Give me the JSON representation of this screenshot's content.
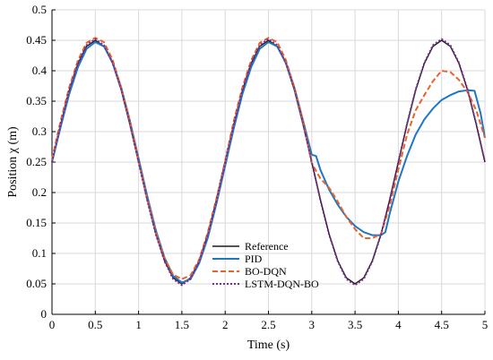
{
  "chart_data": {
    "type": "line",
    "title": "",
    "xlabel": "Time (s)",
    "ylabel": "Position χ (m)",
    "xlim": [
      0,
      5
    ],
    "ylim": [
      0,
      0.5
    ],
    "xticks": [
      0,
      0.5,
      1,
      1.5,
      2,
      2.5,
      3,
      3.5,
      4,
      4.5,
      5
    ],
    "xtick_labels": [
      "0",
      "0.5",
      "1",
      "1.5",
      "2",
      "2.5",
      "3",
      "3.5",
      "4",
      "4.5",
      "5"
    ],
    "yticks": [
      0,
      0.05,
      0.1,
      0.15,
      0.2,
      0.25,
      0.3,
      0.35,
      0.4,
      0.45,
      0.5
    ],
    "ytick_labels": [
      "0",
      "0.05",
      "0.1",
      "0.15",
      "0.2",
      "0.25",
      "0.3",
      "0.35",
      "0.4",
      "0.45",
      "0.5"
    ],
    "grid": true,
    "legend_position": "bottom-center",
    "series": [
      {
        "name": "Reference",
        "color": "#1a1a1a",
        "style": "solid",
        "x": [
          0,
          0.1,
          0.2,
          0.3,
          0.4,
          0.5,
          0.6,
          0.7,
          0.8,
          0.9,
          1.0,
          1.1,
          1.2,
          1.3,
          1.4,
          1.5,
          1.6,
          1.7,
          1.8,
          1.9,
          2.0,
          2.1,
          2.2,
          2.3,
          2.4,
          2.5,
          2.6,
          2.7,
          2.8,
          2.9,
          3.0,
          3.1,
          3.2,
          3.3,
          3.4,
          3.5,
          3.6,
          3.7,
          3.8,
          3.9,
          4.0,
          4.1,
          4.2,
          4.3,
          4.4,
          4.5,
          4.6,
          4.7,
          4.8,
          4.9,
          5.0
        ],
        "y": [
          0.25,
          0.312,
          0.368,
          0.412,
          0.44,
          0.45,
          0.44,
          0.412,
          0.368,
          0.312,
          0.25,
          0.188,
          0.132,
          0.088,
          0.06,
          0.05,
          0.06,
          0.088,
          0.132,
          0.188,
          0.25,
          0.312,
          0.368,
          0.412,
          0.44,
          0.45,
          0.44,
          0.412,
          0.368,
          0.312,
          0.25,
          0.188,
          0.132,
          0.088,
          0.06,
          0.05,
          0.06,
          0.088,
          0.132,
          0.188,
          0.25,
          0.312,
          0.368,
          0.412,
          0.44,
          0.45,
          0.44,
          0.412,
          0.368,
          0.312,
          0.25
        ]
      },
      {
        "name": "PID",
        "color": "#1f77c4",
        "style": "solid",
        "x": [
          0,
          0.1,
          0.2,
          0.3,
          0.4,
          0.5,
          0.6,
          0.7,
          0.8,
          0.9,
          1.0,
          1.1,
          1.2,
          1.3,
          1.4,
          1.5,
          1.6,
          1.7,
          1.8,
          1.9,
          2.0,
          2.1,
          2.2,
          2.3,
          2.4,
          2.5,
          2.6,
          2.7,
          2.8,
          2.9,
          3.0,
          3.05,
          3.1,
          3.2,
          3.3,
          3.4,
          3.5,
          3.6,
          3.7,
          3.8,
          3.85,
          3.9,
          4.0,
          4.1,
          4.2,
          4.3,
          4.4,
          4.5,
          4.6,
          4.7,
          4.8,
          4.88,
          4.95,
          5.0
        ],
        "y": [
          0.25,
          0.308,
          0.362,
          0.406,
          0.436,
          0.447,
          0.44,
          0.414,
          0.372,
          0.318,
          0.256,
          0.194,
          0.138,
          0.093,
          0.063,
          0.052,
          0.058,
          0.084,
          0.126,
          0.182,
          0.244,
          0.306,
          0.362,
          0.406,
          0.436,
          0.447,
          0.44,
          0.414,
          0.372,
          0.318,
          0.262,
          0.26,
          0.237,
          0.205,
          0.18,
          0.16,
          0.145,
          0.135,
          0.13,
          0.13,
          0.135,
          0.165,
          0.218,
          0.26,
          0.295,
          0.32,
          0.338,
          0.352,
          0.36,
          0.366,
          0.368,
          0.367,
          0.33,
          0.29
        ]
      },
      {
        "name": "BO-DQN",
        "color": "#e8622a",
        "style": "dashed",
        "x": [
          0,
          0.1,
          0.2,
          0.3,
          0.4,
          0.5,
          0.6,
          0.7,
          0.8,
          0.9,
          1.0,
          1.1,
          1.2,
          1.3,
          1.4,
          1.5,
          1.6,
          1.7,
          1.8,
          1.9,
          2.0,
          2.1,
          2.2,
          2.3,
          2.4,
          2.5,
          2.6,
          2.7,
          2.8,
          2.9,
          3.0,
          3.1,
          3.2,
          3.3,
          3.4,
          3.5,
          3.6,
          3.7,
          3.8,
          3.9,
          4.0,
          4.1,
          4.2,
          4.3,
          4.4,
          4.5,
          4.6,
          4.7,
          4.8,
          4.9,
          5.0
        ],
        "y": [
          0.255,
          0.318,
          0.373,
          0.417,
          0.446,
          0.454,
          0.447,
          0.418,
          0.372,
          0.318,
          0.252,
          0.19,
          0.135,
          0.092,
          0.065,
          0.058,
          0.064,
          0.09,
          0.135,
          0.19,
          0.252,
          0.318,
          0.373,
          0.417,
          0.446,
          0.454,
          0.447,
          0.418,
          0.372,
          0.318,
          0.248,
          0.223,
          0.208,
          0.185,
          0.16,
          0.14,
          0.125,
          0.125,
          0.132,
          0.178,
          0.238,
          0.295,
          0.335,
          0.36,
          0.383,
          0.4,
          0.398,
          0.385,
          0.365,
          0.335,
          0.29
        ]
      },
      {
        "name": "LSTM-DQN-BO",
        "color": "#7a2c8f",
        "style": "dotted",
        "x": [
          0,
          0.1,
          0.2,
          0.3,
          0.4,
          0.5,
          0.6,
          0.7,
          0.8,
          0.9,
          1.0,
          1.1,
          1.2,
          1.3,
          1.4,
          1.5,
          1.6,
          1.7,
          1.8,
          1.9,
          2.0,
          2.1,
          2.2,
          2.3,
          2.4,
          2.5,
          2.6,
          2.7,
          2.8,
          2.9,
          3.0,
          3.1,
          3.2,
          3.3,
          3.4,
          3.5,
          3.6,
          3.7,
          3.8,
          3.9,
          4.0,
          4.1,
          4.2,
          4.3,
          4.4,
          4.5,
          4.6,
          4.7,
          4.8,
          4.9,
          5.0
        ],
        "y": [
          0.25,
          0.313,
          0.369,
          0.413,
          0.442,
          0.452,
          0.442,
          0.413,
          0.369,
          0.313,
          0.25,
          0.187,
          0.131,
          0.087,
          0.058,
          0.048,
          0.058,
          0.087,
          0.131,
          0.187,
          0.25,
          0.313,
          0.369,
          0.413,
          0.442,
          0.452,
          0.442,
          0.413,
          0.369,
          0.313,
          0.25,
          0.187,
          0.131,
          0.087,
          0.058,
          0.048,
          0.058,
          0.087,
          0.131,
          0.187,
          0.25,
          0.313,
          0.369,
          0.413,
          0.442,
          0.452,
          0.442,
          0.413,
          0.369,
          0.313,
          0.25
        ]
      }
    ]
  }
}
